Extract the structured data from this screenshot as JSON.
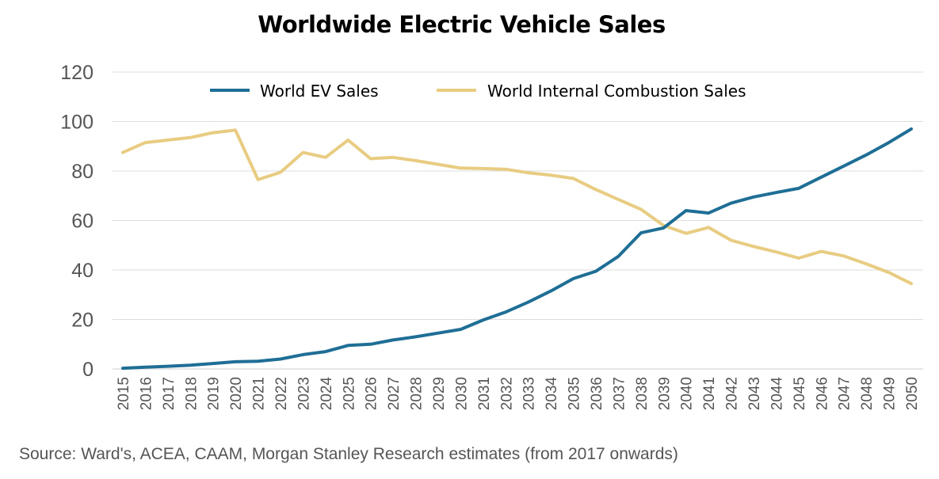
{
  "title": "Worldwide Electric Vehicle Sales",
  "source": "Source: Ward's, ACEA, CAAM, Morgan Stanley Research estimates (from 2017 onwards)",
  "colors": {
    "ev": "#1f6e96",
    "ice": "#e8cc82",
    "grid": "#dddddd",
    "axis_text": "#555555"
  },
  "chart_data": {
    "type": "line",
    "title": "Worldwide Electric Vehicle Sales",
    "xlabel": "",
    "ylabel": "",
    "ylim": [
      0,
      120
    ],
    "yticks": [
      0,
      20,
      40,
      60,
      80,
      100,
      120
    ],
    "grid": true,
    "legend_position": "top",
    "x": [
      "2015",
      "2016",
      "2017",
      "2018",
      "2019",
      "2020",
      "2021",
      "2022",
      "2023",
      "2024",
      "2025",
      "2026",
      "2027",
      "2028",
      "2029",
      "2030",
      "2031",
      "2032",
      "2033",
      "2034",
      "2035",
      "2036",
      "2037",
      "2038",
      "2039",
      "2040",
      "2041",
      "2042",
      "2043",
      "2044",
      "2045",
      "2046",
      "2047",
      "2048",
      "2049",
      "2050"
    ],
    "series": [
      {
        "name": "World EV Sales",
        "color": "#1f6e96",
        "values": [
          0.3,
          0.7,
          1.1,
          1.5,
          2.2,
          2.9,
          3.1,
          4.0,
          5.8,
          7.0,
          9.5,
          10.0,
          11.7,
          13.0,
          14.5,
          16.0,
          19.8,
          23.0,
          27.0,
          31.5,
          36.5,
          39.5,
          45.5,
          55.0,
          57.0,
          64.0,
          63.0,
          67.0,
          69.5,
          71.3,
          73.0,
          77.5,
          82.0,
          86.5,
          91.5,
          97.0
        ]
      },
      {
        "name": "World Internal Combustion Sales",
        "color": "#e8cc82",
        "values": [
          87.5,
          91.5,
          92.5,
          93.5,
          95.5,
          96.5,
          76.5,
          79.5,
          87.5,
          85.5,
          92.5,
          85.0,
          85.5,
          84.2,
          82.7,
          81.2,
          81.0,
          80.7,
          79.3,
          78.3,
          77.0,
          72.5,
          68.5,
          64.5,
          58.0,
          54.8,
          57.2,
          52.0,
          49.5,
          47.3,
          44.8,
          47.5,
          45.7,
          42.5,
          39.0,
          34.5
        ]
      }
    ]
  }
}
